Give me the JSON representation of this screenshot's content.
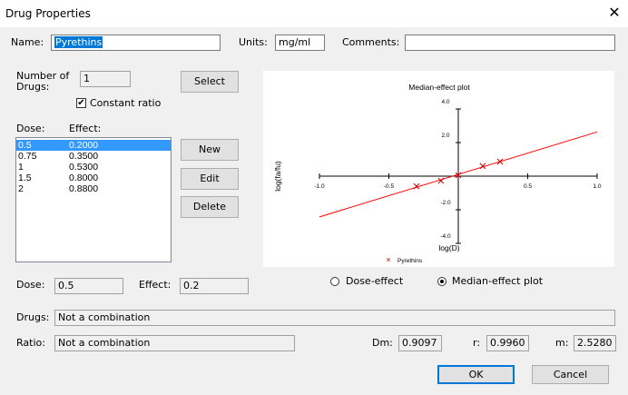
{
  "window": {
    "title": "Drug Properties",
    "close_glyph": "✕"
  },
  "name": {
    "label": "Name:",
    "value": "Pyrethins"
  },
  "units": {
    "label": "Units:",
    "value": "mg/ml"
  },
  "comments": {
    "label": "Comments:",
    "value": ""
  },
  "number_of_drugs": {
    "label_line1": "Number of",
    "label_line2": "Drugs:",
    "value": "1"
  },
  "select_button": "Select",
  "constant_ratio": {
    "label": "Constant ratio",
    "checked": true,
    "check_glyph": "✔"
  },
  "dose_effect_list": {
    "header_dose": "Dose:",
    "header_effect": "Effect:",
    "rows": [
      {
        "dose": "0.5",
        "effect": "0.2000",
        "selected": true
      },
      {
        "dose": "0.75",
        "effect": "0.3500"
      },
      {
        "dose": "1",
        "effect": "0.5300"
      },
      {
        "dose": "1.5",
        "effect": "0.8000"
      },
      {
        "dose": "2",
        "effect": "0.8800"
      }
    ]
  },
  "buttons": {
    "new": "New",
    "edit": "Edit",
    "delete": "Delete",
    "ok": "OK",
    "cancel": "Cancel"
  },
  "dose_field": {
    "label": "Dose:",
    "value": "0.5"
  },
  "effect_field": {
    "label": "Effect:",
    "value": "0.2"
  },
  "plot_mode": {
    "dose_effect": "Dose-effect",
    "median_effect": "Median-effect plot",
    "selected": "median_effect"
  },
  "drugs": {
    "label": "Drugs:",
    "value": "Not a combination"
  },
  "ratio": {
    "label": "Ratio:",
    "value": "Not a combination"
  },
  "dm": {
    "label": "Dm:",
    "value": "0.9097"
  },
  "r": {
    "label": "r:",
    "value": "0.9960"
  },
  "m": {
    "label": "m:",
    "value": "2.5280"
  },
  "colors": {
    "line": "#ff0000",
    "marker": "#cc0000"
  },
  "chart_data": {
    "type": "scatter",
    "title": "Median-effect plot",
    "xlabel": "log(D)",
    "ylabel": "log(fa/fu)",
    "xlim": [
      -1.0,
      1.0
    ],
    "ylim": [
      -4.0,
      4.0
    ],
    "x_ticks": [
      "-1.0",
      "-0.5",
      "0.5",
      "1.0"
    ],
    "y_ticks": [
      "4.0",
      "2.0",
      "-2.0",
      "-4.0"
    ],
    "x_tick_values": [
      -1.0,
      -0.5,
      0.5,
      1.0
    ],
    "y_tick_values": [
      4.0,
      2.0,
      -2.0,
      -4.0
    ],
    "legend": "Pyrethins",
    "legend_marker": "×",
    "series": [
      {
        "name": "Pyrethins",
        "x": [
          -0.301,
          -0.125,
          0.0,
          0.176,
          0.301
        ],
        "y": [
          -0.602,
          -0.269,
          0.052,
          0.602,
          0.865
        ]
      }
    ],
    "fit_line": {
      "slope": 2.528,
      "intercept": 0.1041,
      "x_range": [
        -1.0,
        1.0
      ]
    }
  }
}
